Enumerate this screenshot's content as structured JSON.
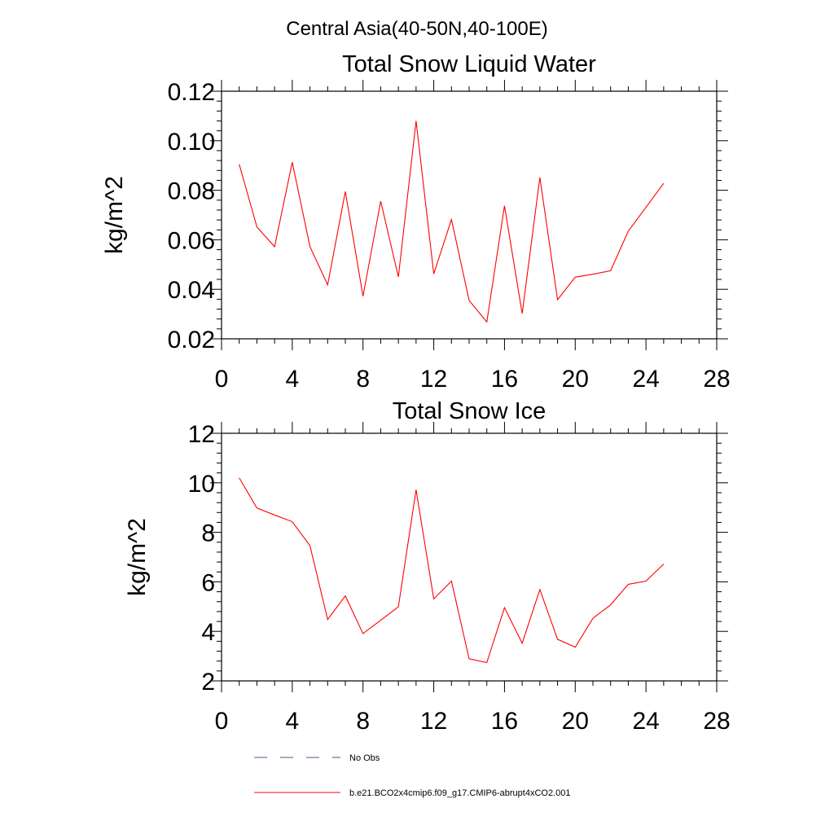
{
  "figure": {
    "main_title": "Central Asia(40-50N,40-100E)"
  },
  "colors": {
    "model_line": "#ff0000",
    "obs_line": "#4a5a8a",
    "axis": "#000000"
  },
  "legend": {
    "obs_label": "No Obs",
    "model_label": "b.e21.BCO2x4cmip6.f09_g17.CMIP6-abrupt4xCO2.001"
  },
  "chart_data": [
    {
      "type": "line",
      "title": "Total Snow Liquid Water",
      "xlabel": "",
      "ylabel": "kg/m^2",
      "xlim": [
        0,
        28
      ],
      "ylim": [
        0.02,
        0.12
      ],
      "xticks": [
        0,
        4,
        8,
        12,
        16,
        20,
        24,
        28
      ],
      "xtick_labels": [
        "0",
        "4",
        "8",
        "12",
        "16",
        "20",
        "24",
        "28"
      ],
      "yticks": [
        0.02,
        0.04,
        0.06,
        0.08,
        0.1,
        0.12
      ],
      "ytick_labels": [
        "0.02",
        "0.04",
        "0.06",
        "0.08",
        "0.10",
        "0.12"
      ],
      "x": [
        1,
        2,
        3,
        4,
        5,
        6,
        7,
        8,
        9,
        10,
        11,
        12,
        13,
        14,
        15,
        16,
        17,
        18,
        19,
        20,
        21,
        22,
        23,
        24,
        25
      ],
      "series": [
        {
          "name": "b.e21.BCO2x4cmip6.f09_g17.CMIP6-abrupt4xCO2.001",
          "values": [
            0.0905,
            0.0652,
            0.0572,
            0.0913,
            0.0572,
            0.0418,
            0.0795,
            0.0372,
            0.0756,
            0.045,
            0.108,
            0.0462,
            0.0682,
            0.0355,
            0.0268,
            0.0737,
            0.0302,
            0.0852,
            0.0358,
            0.0449,
            0.0461,
            0.0475,
            0.0635,
            0.0731,
            0.0828
          ]
        }
      ]
    },
    {
      "type": "line",
      "title": "Total Snow Ice",
      "xlabel": "",
      "ylabel": "kg/m^2",
      "xlim": [
        0,
        28
      ],
      "ylim": [
        2,
        12
      ],
      "xticks": [
        0,
        4,
        8,
        12,
        16,
        20,
        24,
        28
      ],
      "xtick_labels": [
        "0",
        "4",
        "8",
        "12",
        "16",
        "20",
        "24",
        "28"
      ],
      "yticks": [
        2,
        4,
        6,
        8,
        10,
        12
      ],
      "ytick_labels": [
        "2",
        "4",
        "6",
        "8",
        "10",
        "12"
      ],
      "x": [
        1,
        2,
        3,
        4,
        5,
        6,
        7,
        8,
        9,
        10,
        11,
        12,
        13,
        14,
        15,
        16,
        17,
        18,
        19,
        20,
        21,
        22,
        23,
        24,
        25
      ],
      "series": [
        {
          "name": "b.e21.BCO2x4cmip6.f09_g17.CMIP6-abrupt4xCO2.001",
          "values": [
            10.2,
            8.98,
            8.7,
            8.43,
            7.46,
            4.48,
            5.43,
            3.91,
            4.45,
            4.99,
            9.72,
            5.31,
            6.03,
            2.89,
            2.74,
            4.96,
            3.52,
            5.69,
            3.68,
            3.36,
            4.53,
            5.07,
            5.9,
            6.03,
            6.72
          ]
        }
      ]
    }
  ]
}
